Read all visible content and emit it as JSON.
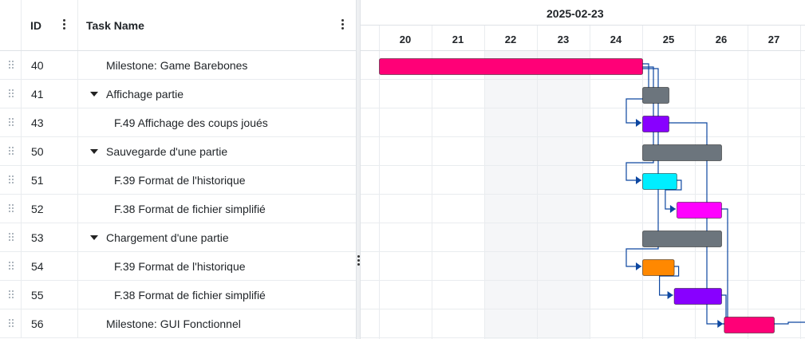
{
  "grid": {
    "columns": {
      "id": "ID",
      "name": "Task Name"
    },
    "rows": [
      {
        "id": "40",
        "name": "Milestone: Game Barebones",
        "level": 1,
        "parent": false
      },
      {
        "id": "41",
        "name": "Affichage partie",
        "level": 1,
        "parent": true
      },
      {
        "id": "43",
        "name": "F.49 Affichage des coups joués",
        "level": 2,
        "parent": false
      },
      {
        "id": "50",
        "name": "Sauvegarde d'une partie",
        "level": 1,
        "parent": true
      },
      {
        "id": "51",
        "name": "F.39 Format de l'historique",
        "level": 2,
        "parent": false
      },
      {
        "id": "52",
        "name": "F.38 Format de fichier simplifié",
        "level": 2,
        "parent": false
      },
      {
        "id": "53",
        "name": "Chargement d'une partie",
        "level": 1,
        "parent": true
      },
      {
        "id": "54",
        "name": "F.39 Format de l'historique",
        "level": 2,
        "parent": false
      },
      {
        "id": "55",
        "name": "F.38 Format de fichier simplifié",
        "level": 2,
        "parent": false
      },
      {
        "id": "56",
        "name": "Milestone: GUI Fonctionnel",
        "level": 1,
        "parent": false
      }
    ]
  },
  "timeline": {
    "week_label": "2025-02-23",
    "days": [
      "20",
      "21",
      "22",
      "23",
      "24",
      "25",
      "26",
      "27"
    ],
    "weekend_days": [
      "22",
      "23"
    ],
    "bars": [
      {
        "row": 0,
        "start": 20.0,
        "end": 25.0,
        "color": "#ff0077"
      },
      {
        "row": 1,
        "start": 25.0,
        "end": 25.5,
        "color": "#6c757d"
      },
      {
        "row": 2,
        "start": 25.0,
        "end": 25.5,
        "color": "#8800ff"
      },
      {
        "row": 3,
        "start": 25.0,
        "end": 26.5,
        "color": "#6c757d"
      },
      {
        "row": 4,
        "start": 25.0,
        "end": 25.65,
        "color": "#00eeff"
      },
      {
        "row": 5,
        "start": 25.65,
        "end": 26.5,
        "color": "#ff00ff"
      },
      {
        "row": 6,
        "start": 25.0,
        "end": 26.5,
        "color": "#6c757d"
      },
      {
        "row": 7,
        "start": 25.0,
        "end": 25.6,
        "color": "#ff8800"
      },
      {
        "row": 8,
        "start": 25.6,
        "end": 26.5,
        "color": "#8800ff"
      },
      {
        "row": 9,
        "start": 26.55,
        "end": 27.5,
        "color": "#ff0077"
      }
    ],
    "dependency_color": "#0d47a1"
  }
}
